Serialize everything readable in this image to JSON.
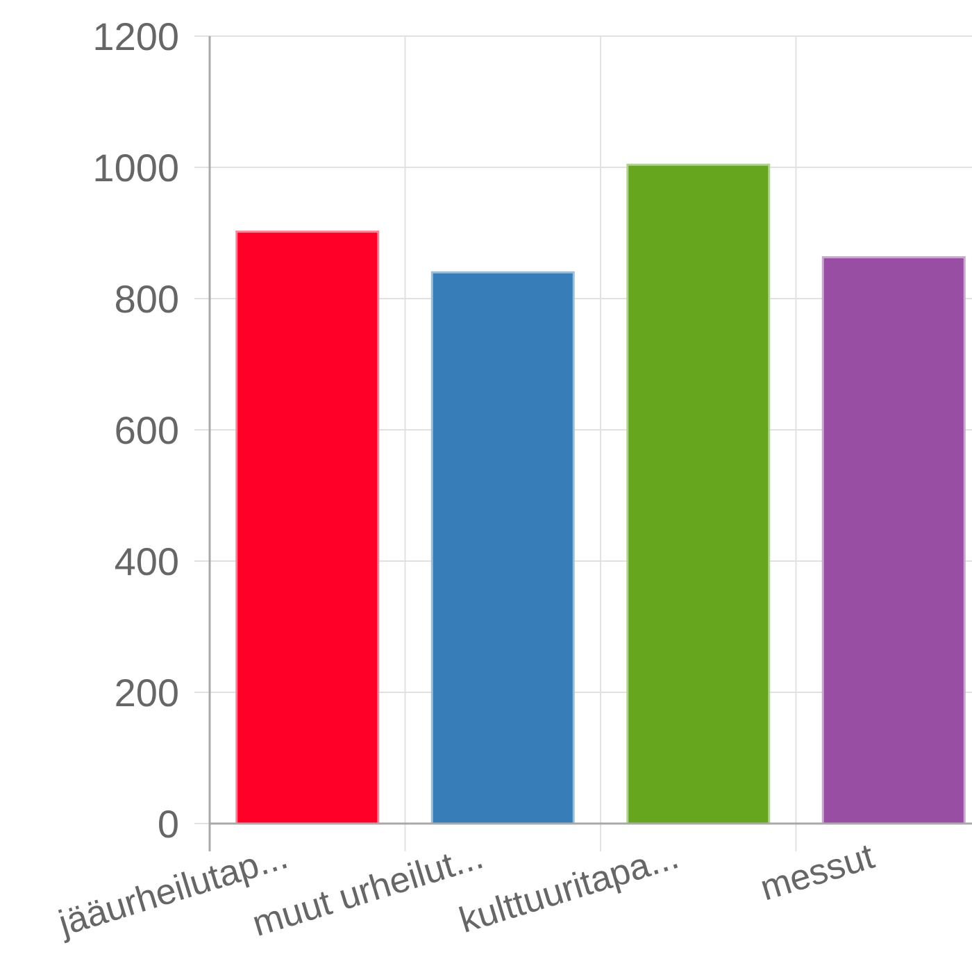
{
  "chart_data": {
    "type": "bar",
    "categories": [
      "jääurheilutap...",
      "muut urheilut...",
      "kulttuuritapa...",
      "messut"
    ],
    "values": [
      902,
      840,
      1004,
      863
    ],
    "colors": [
      "#ff0029",
      "#377eb8",
      "#66a61e",
      "#984ea3"
    ],
    "border_colors": [
      "#ff8194",
      "#9bbedb",
      "#b2d38e",
      "#cba6d1"
    ],
    "yticks": [
      "0",
      "200",
      "400",
      "600",
      "800",
      "1000",
      "1200"
    ],
    "ylim": [
      0,
      1200
    ],
    "title": "",
    "xlabel": "",
    "ylabel": "",
    "grid": true,
    "legend": "none"
  }
}
